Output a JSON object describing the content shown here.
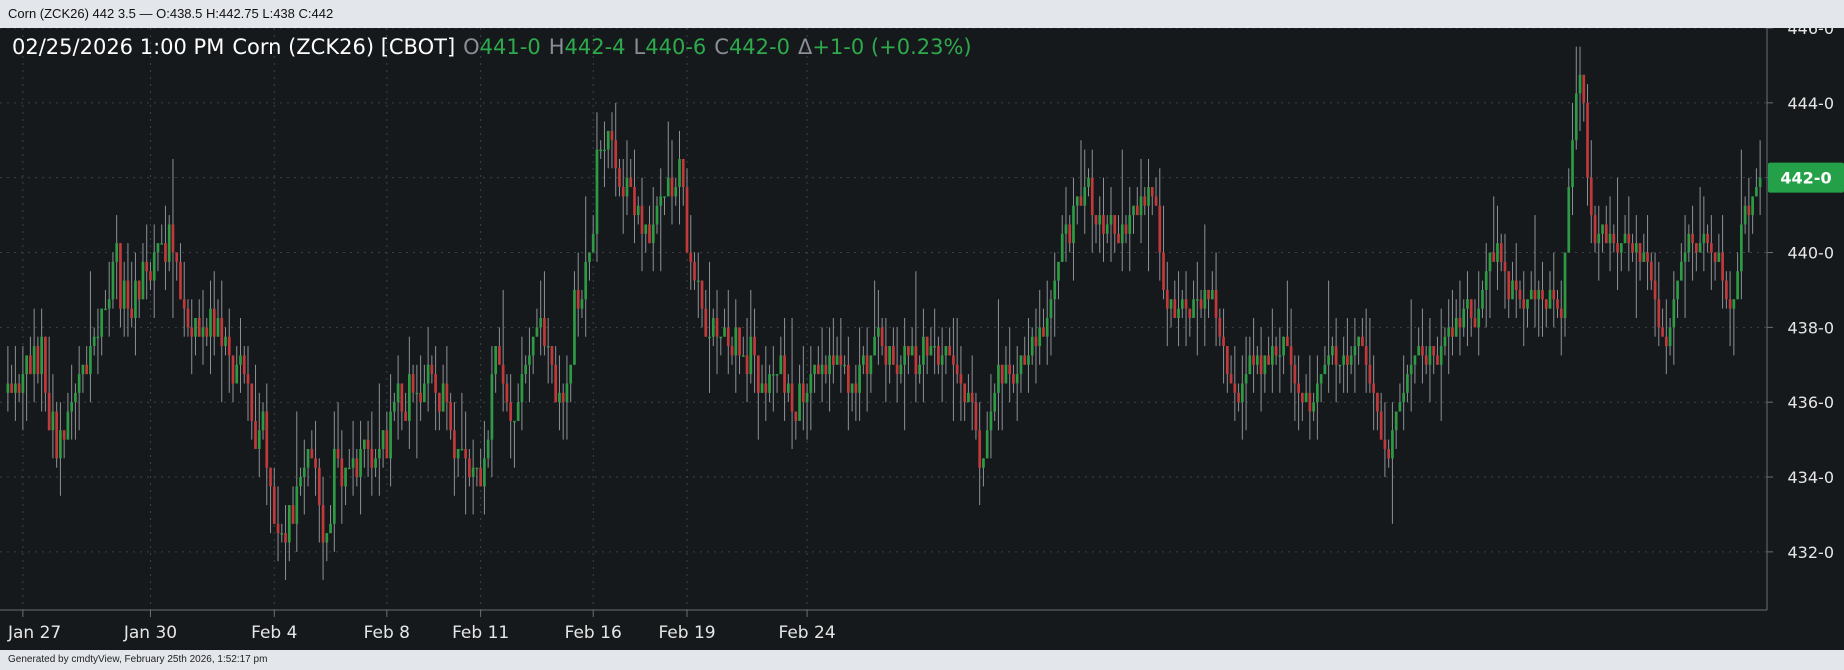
{
  "window": {
    "title": "Corn (ZCK26) 442 3.5 — O:438.5 H:442.75 L:438 C:442"
  },
  "header": {
    "datetime": "02/25/2026  1:00 PM",
    "instrument": "Corn (ZCK26) [CBOT]",
    "open_label": "O",
    "open_value": "441-0",
    "high_label": "H",
    "high_value": "442-4",
    "low_label": "L",
    "low_value": "440-6",
    "close_label": "C",
    "close_value": "442-0",
    "change_label": "Δ",
    "change_value": "+1-0 (+0.23%)"
  },
  "footer": {
    "text": "Generated by cmdtyView, February 25th 2026, 1:52:17 pm"
  },
  "colors": {
    "background": "#16191c",
    "grid": "#3c4247",
    "up": "#2e9a44",
    "down": "#c0393b",
    "wick": "#8d9196",
    "accent": "#24a148",
    "text": "#e6e6e6"
  },
  "chart_data": {
    "type": "candlestick",
    "title": "Corn (ZCK26) [CBOT]",
    "interval": "hourly",
    "ylim": [
      430.5,
      446
    ],
    "ytick_values": [
      432,
      434,
      436,
      438,
      440,
      442,
      444,
      446
    ],
    "ytick_labels": [
      "432-0",
      "434-0",
      "436-0",
      "438-0",
      "440-0",
      "442-0",
      "444-0",
      "446-0"
    ],
    "x_tick_labels": [
      "Jan 27",
      "Jan 30",
      "Feb 4",
      "Feb 8",
      "Feb 11",
      "Feb 16",
      "Feb 19",
      "Feb 24"
    ],
    "x_tick_bar_index": [
      4,
      38,
      71,
      101,
      126,
      156,
      181,
      213
    ],
    "current_price_label": "442-0",
    "current_price": 442,
    "grid": true,
    "legend": "none",
    "series": [
      {
        "name": "ZCK26",
        "closes": [
          436.5,
          436.25,
          436.5,
          436.25,
          436.75,
          437.25,
          436.75,
          437.5,
          436.75,
          437.75,
          436.25,
          435.25,
          435.75,
          434.5,
          435.25,
          435.0,
          435.75,
          436.0,
          436.25,
          436.75,
          437.0,
          436.75,
          437.5,
          437.75,
          437.75,
          438.5,
          438.5,
          438.75,
          439.75,
          440.25,
          438.5,
          439.25,
          438.5,
          438.25,
          439.25,
          438.75,
          439.75,
          439.5,
          439.25,
          440.0,
          440.25,
          440.25,
          439.75,
          440.75,
          440.0,
          439.75,
          438.75,
          438.5,
          438.0,
          437.75,
          438.25,
          437.75,
          438.0,
          437.75,
          438.5,
          437.75,
          438.25,
          437.5,
          437.75,
          437.25,
          436.5,
          437.0,
          437.25,
          436.75,
          436.5,
          435.5,
          434.75,
          435.25,
          435.75,
          434.25,
          433.75,
          432.75,
          432.5,
          432.5,
          432.25,
          433.25,
          432.75,
          433.75,
          434.0,
          434.25,
          434.75,
          434.5,
          434.25,
          433.25,
          432.25,
          432.5,
          432.75,
          434.75,
          434.5,
          433.75,
          434.25,
          434.25,
          434.5,
          434.0,
          434.75,
          435.0,
          434.75,
          434.25,
          434.5,
          434.75,
          435.25,
          434.5,
          435.75,
          436.0,
          436.5,
          435.75,
          435.5,
          436.75,
          436.25,
          436.25,
          436.0,
          436.5,
          437.0,
          436.75,
          436.25,
          435.75,
          436.5,
          436.0,
          435.25,
          434.5,
          434.75,
          434.75,
          434.5,
          434.0,
          434.25,
          434.25,
          433.75,
          434.5,
          435.0,
          436.75,
          437.5,
          437.0,
          436.5,
          436.0,
          435.5,
          435.5,
          436.0,
          436.75,
          437.0,
          437.25,
          437.75,
          438.0,
          438.25,
          437.5,
          437.5,
          437.0,
          436.0,
          436.25,
          436.0,
          436.5,
          437.0,
          439.0,
          438.5,
          438.75,
          439.75,
          440.0,
          440.5,
          442.75,
          442.75,
          442.75,
          443.25,
          443.0,
          442.25,
          441.75,
          441.5,
          442.0,
          441.75,
          441.0,
          441.25,
          440.5,
          440.75,
          440.25,
          440.75,
          441.25,
          441.5,
          441.5,
          442.0,
          441.5,
          441.75,
          442.5,
          441.75,
          440.0,
          439.75,
          439.25,
          439.25,
          438.5,
          437.75,
          437.75,
          438.25,
          437.75,
          437.75,
          438.0,
          437.5,
          437.25,
          438.0,
          437.25,
          437.25,
          436.75,
          437.75,
          437.25,
          436.25,
          436.5,
          436.25,
          436.75,
          436.75,
          436.75,
          437.25,
          436.25,
          436.5,
          435.75,
          435.5,
          436.5,
          436.0,
          436.25,
          436.75,
          437.0,
          436.75,
          437.0,
          436.75,
          437.25,
          437.0,
          437.25,
          437.0,
          437.0,
          436.25,
          436.5,
          436.25,
          437.0,
          437.25,
          436.75,
          437.25,
          437.75,
          438.0,
          437.5,
          437.0,
          437.5,
          437.0,
          436.75,
          437.0,
          437.5,
          437.25,
          437.5,
          436.75,
          437.0,
          437.75,
          437.25,
          437.5,
          437.5,
          437.0,
          437.25,
          437.5,
          437.25,
          437.0,
          436.75,
          436.5,
          436.0,
          436.25,
          436.0,
          435.25,
          434.25,
          434.5,
          435.25,
          435.75,
          436.25,
          437.0,
          436.5,
          437.0,
          436.75,
          436.5,
          436.75,
          437.25,
          437.0,
          437.25,
          437.75,
          437.5,
          438.0,
          437.75,
          438.25,
          438.75,
          439.25,
          439.75,
          440.5,
          440.75,
          440.25,
          441.25,
          441.5,
          441.25,
          441.75,
          442.0,
          441.0,
          440.75,
          441.0,
          440.5,
          440.75,
          441.0,
          440.5,
          440.25,
          440.75,
          440.5,
          441.0,
          441.25,
          441.0,
          441.5,
          441.25,
          441.75,
          441.5,
          441.25,
          440.0,
          439.0,
          438.5,
          438.75,
          438.25,
          438.5,
          438.75,
          438.5,
          438.25,
          438.75,
          438.75,
          438.5,
          439.0,
          438.75,
          439.0,
          438.25,
          437.75,
          437.5,
          436.75,
          436.5,
          436.25,
          436.0,
          436.5,
          436.75,
          437.25,
          437.0,
          437.25,
          436.75,
          437.25,
          437.0,
          437.5,
          437.25,
          437.25,
          437.75,
          437.5,
          437.0,
          436.5,
          436.25,
          436.0,
          436.25,
          435.75,
          436.0,
          436.5,
          436.75,
          437.0,
          437.25,
          437.5,
          437.0,
          437.0,
          437.25,
          437.0,
          437.25,
          437.5,
          437.75,
          437.5,
          437.0,
          436.5,
          436.25,
          435.75,
          435.0,
          434.75,
          434.5,
          435.25,
          435.75,
          436.0,
          436.25,
          436.75,
          437.0,
          437.25,
          437.5,
          437.25,
          437.0,
          437.5,
          437.25,
          437.0,
          437.5,
          437.75,
          438.0,
          437.75,
          438.25,
          438.0,
          438.5,
          438.75,
          438.25,
          438.0,
          438.5,
          439.0,
          439.5,
          440.0,
          439.75,
          440.25,
          439.75,
          439.5,
          438.75,
          439.25,
          439.0,
          438.75,
          438.5,
          438.75,
          439.0,
          438.75,
          439.0,
          438.75,
          438.5,
          439.0,
          438.75,
          438.5,
          438.25,
          440.0,
          441.75,
          443.0,
          444.25,
          444.75,
          444.0,
          442.0,
          441.0,
          440.25,
          440.5,
          440.75,
          440.25,
          440.5,
          440.25,
          440.0,
          440.25,
          440.5,
          440.25,
          440.0,
          440.25,
          439.75,
          440.0,
          439.75,
          439.25,
          438.75,
          438.0,
          437.75,
          437.5,
          438.0,
          438.75,
          439.25,
          439.75,
          440.0,
          440.5,
          440.25,
          440.0,
          440.25,
          440.5,
          440.25,
          440.0,
          439.75,
          440.0,
          439.25,
          438.75,
          438.5,
          438.75,
          439.5,
          440.75,
          441.25,
          441.0,
          441.5,
          441.75,
          442.0
        ],
        "up_color": "#2e9a44",
        "down_color": "#c0393b"
      }
    ]
  }
}
